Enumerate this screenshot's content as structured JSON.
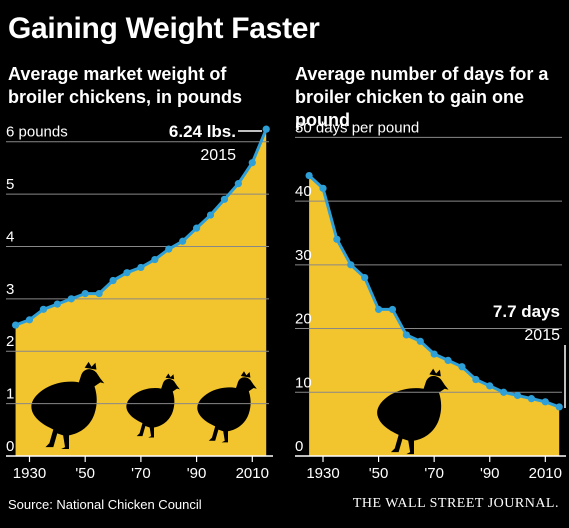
{
  "title": "Gaining Weight Faster",
  "source": "Source: National Chicken Council",
  "publisher": "THE WALL STREET JOURNAL.",
  "colors": {
    "background": "#000000",
    "area": "#f2c42e",
    "line": "#2f9fd8"
  },
  "icons": [
    "chicken-silhouette-icon"
  ],
  "chart_data": [
    {
      "type": "area",
      "subtitle_line1": "Average market weight of",
      "subtitle_line2": "broiler chickens, in pounds",
      "yunit_label": "6 pounds",
      "ylim": [
        0,
        6.3
      ],
      "xlim": [
        1923,
        2016
      ],
      "yticks": [
        0,
        1,
        2,
        3,
        4,
        5,
        6
      ],
      "ytick_labels": [
        "0",
        "1",
        "2",
        "3",
        "4",
        "5",
        "6 pounds"
      ],
      "xticks": [
        1930,
        1950,
        1970,
        1990,
        2010
      ],
      "xtick_labels": [
        "1930",
        "'50",
        "'70",
        "'90",
        "2010"
      ],
      "grid": true,
      "annotation_value": "6.24 lbs.",
      "annotation_year": "2015",
      "x": [
        1925,
        1930,
        1935,
        1940,
        1945,
        1950,
        1955,
        1960,
        1965,
        1970,
        1975,
        1980,
        1985,
        1990,
        1995,
        2000,
        2005,
        2010,
        2015
      ],
      "y": [
        2.5,
        2.6,
        2.8,
        2.9,
        3.0,
        3.1,
        3.1,
        3.35,
        3.5,
        3.6,
        3.75,
        3.95,
        4.1,
        4.35,
        4.6,
        4.9,
        5.2,
        5.6,
        6.24
      ]
    },
    {
      "type": "area",
      "subtitle_line1": "Average number of days for a",
      "subtitle_line2": "broiler chicken to gain one pound",
      "yunit_label": "50 days per pound",
      "ylim": [
        0,
        51
      ],
      "xlim": [
        1921,
        2016
      ],
      "yticks": [
        0,
        10,
        20,
        30,
        40,
        50
      ],
      "ytick_labels": [
        "0",
        "10",
        "20",
        "30",
        "40",
        "50 days per pound"
      ],
      "xticks": [
        1930,
        1950,
        1970,
        1990,
        2010
      ],
      "xtick_labels": [
        "1930",
        "'50",
        "'70",
        "'90",
        "2010"
      ],
      "grid": true,
      "annotation_value": "7.7 days",
      "annotation_year": "2015",
      "x": [
        1925,
        1930,
        1935,
        1940,
        1945,
        1950,
        1955,
        1960,
        1965,
        1970,
        1975,
        1980,
        1985,
        1990,
        1995,
        2000,
        2005,
        2010,
        2015
      ],
      "y": [
        44,
        42,
        34,
        30,
        28,
        23,
        23,
        19,
        18,
        16,
        15,
        14,
        12,
        11,
        10,
        9.5,
        9,
        8.5,
        7.7
      ]
    }
  ]
}
